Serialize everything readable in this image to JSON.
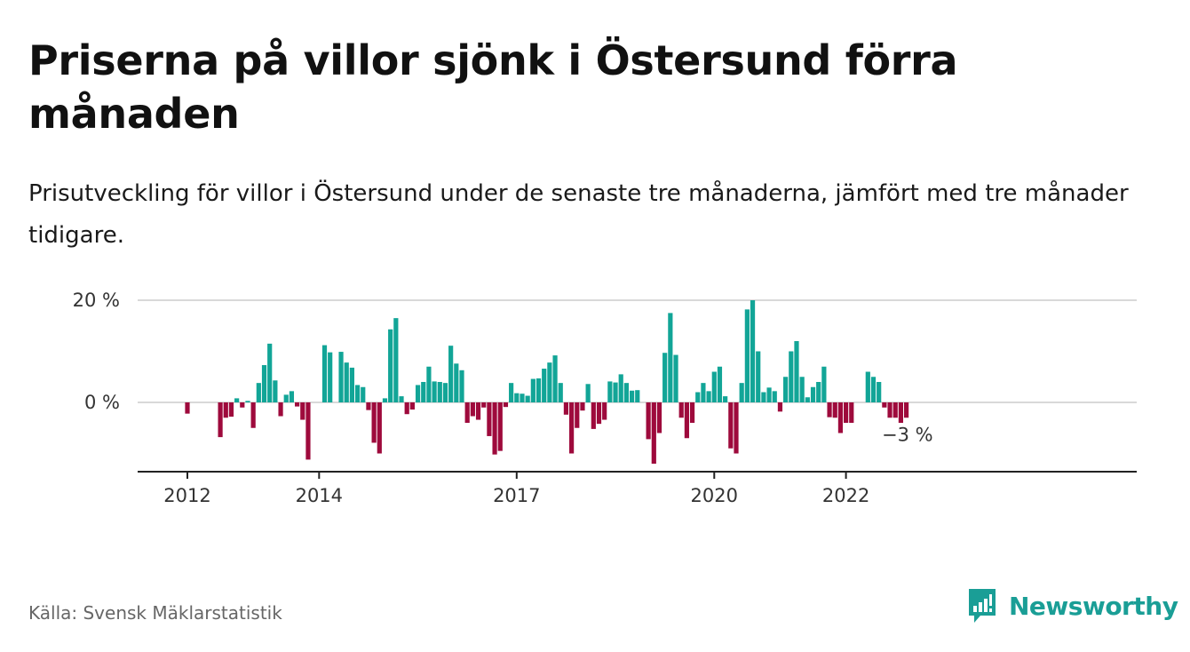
{
  "title": "Priserna på villor sjönk i Östersund förra månaden",
  "subtitle": "Prisutveckling för villor i Östersund under de senaste tre månaderna, jämfört med tre månader tidigare.",
  "source": "Källa: Svensk Mäklarstatistik",
  "brand": "Newsworthy",
  "colors": {
    "positive": "#12a597",
    "negative": "#9e0a3c",
    "brand": "#1a9e96"
  },
  "chart_data": {
    "type": "bar",
    "title": "Priserna på villor sjönk i Östersund förra månaden",
    "ylim": [
      -13,
      20
    ],
    "yticks": [
      {
        "value": 0,
        "label": "0 %"
      },
      {
        "value": 20,
        "label": "20 %"
      }
    ],
    "grid": true,
    "start": "2012-01",
    "xticks": [
      {
        "month": "2012-01",
        "label": "2012"
      },
      {
        "month": "2014-01",
        "label": "2014"
      },
      {
        "month": "2017-01",
        "label": "2017"
      },
      {
        "month": "2020-01",
        "label": "2020"
      },
      {
        "month": "2022-01",
        "label": "2022"
      }
    ],
    "last_label": "−3 %",
    "values": [
      -2.2,
      0,
      0,
      0,
      0,
      0,
      -6.8,
      -3.0,
      -2.8,
      0.8,
      -1.0,
      0.3,
      -5.0,
      3.8,
      7.3,
      11.5,
      4.3,
      -2.7,
      1.5,
      2.2,
      -0.8,
      -3.4,
      -11.2,
      0,
      0,
      11.2,
      9.8,
      0,
      9.9,
      7.8,
      6.8,
      3.4,
      3.0,
      -1.5,
      -7.9,
      -10.0,
      0.8,
      14.3,
      16.5,
      1.2,
      -2.3,
      -1.4,
      3.4,
      4.0,
      7.0,
      4.1,
      4.0,
      3.8,
      11.1,
      7.6,
      6.3,
      -4.0,
      -2.7,
      -3.4,
      -1.0,
      -6.6,
      -10.2,
      -9.5,
      -0.9,
      3.8,
      1.8,
      1.7,
      1.3,
      4.6,
      4.7,
      6.6,
      7.8,
      9.2,
      3.8,
      -2.4,
      -10.0,
      -5.0,
      -1.6,
      3.6,
      -5.2,
      -4.2,
      -3.4,
      4.1,
      3.9,
      5.5,
      3.8,
      2.3,
      2.4,
      0,
      -7.2,
      -12.0,
      -6.0,
      9.7,
      17.5,
      9.3,
      -3.0,
      -7.0,
      -4.0,
      2.0,
      3.8,
      2.2,
      6.0,
      7.0,
      1.2,
      -9.0,
      -10.0,
      3.8,
      18.2,
      20.0,
      10.0,
      2.0,
      2.9,
      2.2,
      -1.8,
      5.0,
      10.0,
      12.0,
      5.0,
      1.0,
      3.0,
      4.0,
      7.0,
      -2.9,
      -3.0,
      -6.0,
      -4.0,
      -4.0,
      0,
      0,
      6.0,
      5.0,
      4.0,
      -1.0,
      -3.0,
      -3.0,
      -4.0,
      -3.0
    ]
  }
}
